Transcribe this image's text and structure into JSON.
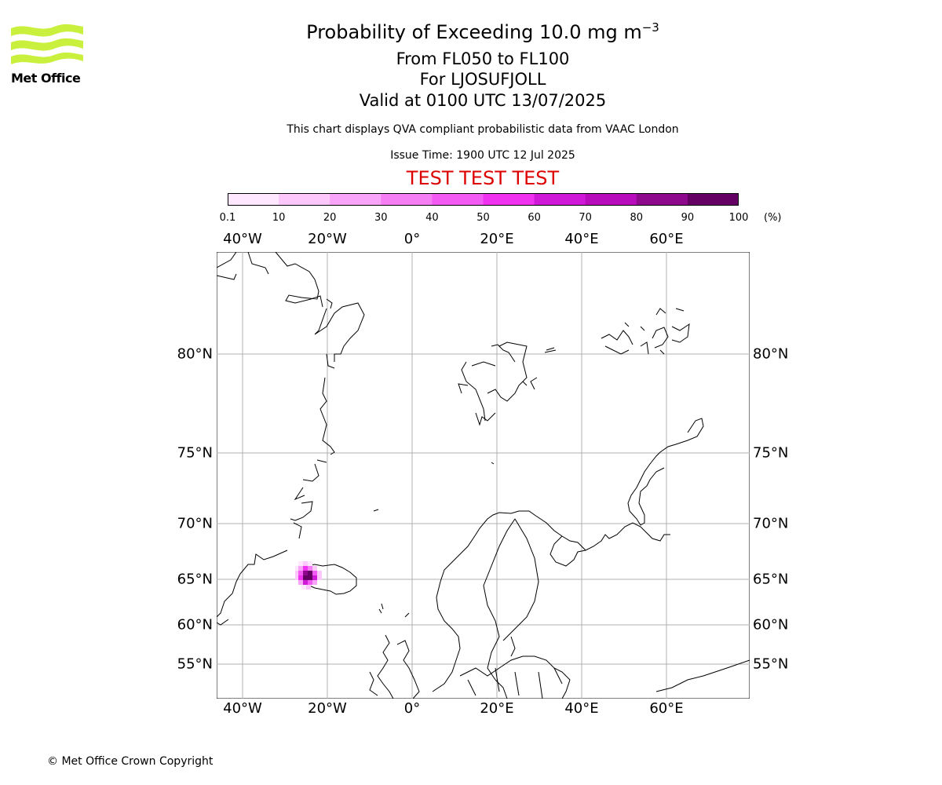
{
  "header": {
    "title": "Probability of Exceeding 10.0 mg m",
    "title_superscript": "−3",
    "levels": "From FL050 to FL100",
    "location": "For LJOSUFJOLL",
    "valid": "Valid at 0100 UTC 13/07/2025",
    "subtitle": "This chart displays QVA compliant probabilistic data from VAAC London",
    "issue_time": "Issue Time: 1900 UTC 12 Jul 2025",
    "test_banner": "TEST TEST TEST"
  },
  "logo": {
    "text": "Met Office",
    "color": "#c8f03c"
  },
  "colorbar": {
    "ticks": [
      "0.1",
      "10",
      "20",
      "30",
      "40",
      "50",
      "60",
      "70",
      "80",
      "90",
      "100"
    ],
    "unit": "(%)",
    "colors": [
      "#ffe8ff",
      "#fcc8fc",
      "#f8a4f8",
      "#f57ef5",
      "#f35af3",
      "#f032f0",
      "#d018d8",
      "#b80cbc",
      "#8e088e",
      "#640064"
    ]
  },
  "map": {
    "lon_labels": [
      "40°W",
      "20°W",
      "0°",
      "20°E",
      "40°E",
      "60°E"
    ],
    "lat_labels": [
      "80°N",
      "75°N",
      "70°N",
      "65°N",
      "60°N",
      "55°N"
    ],
    "lon_values": [
      -40,
      -20,
      0,
      20,
      40,
      60
    ],
    "lat_values": [
      80,
      75,
      70,
      65,
      60,
      55
    ],
    "plume_location": "Iceland (west)"
  },
  "footer": {
    "copyright": "© Met Office Crown Copyright"
  }
}
